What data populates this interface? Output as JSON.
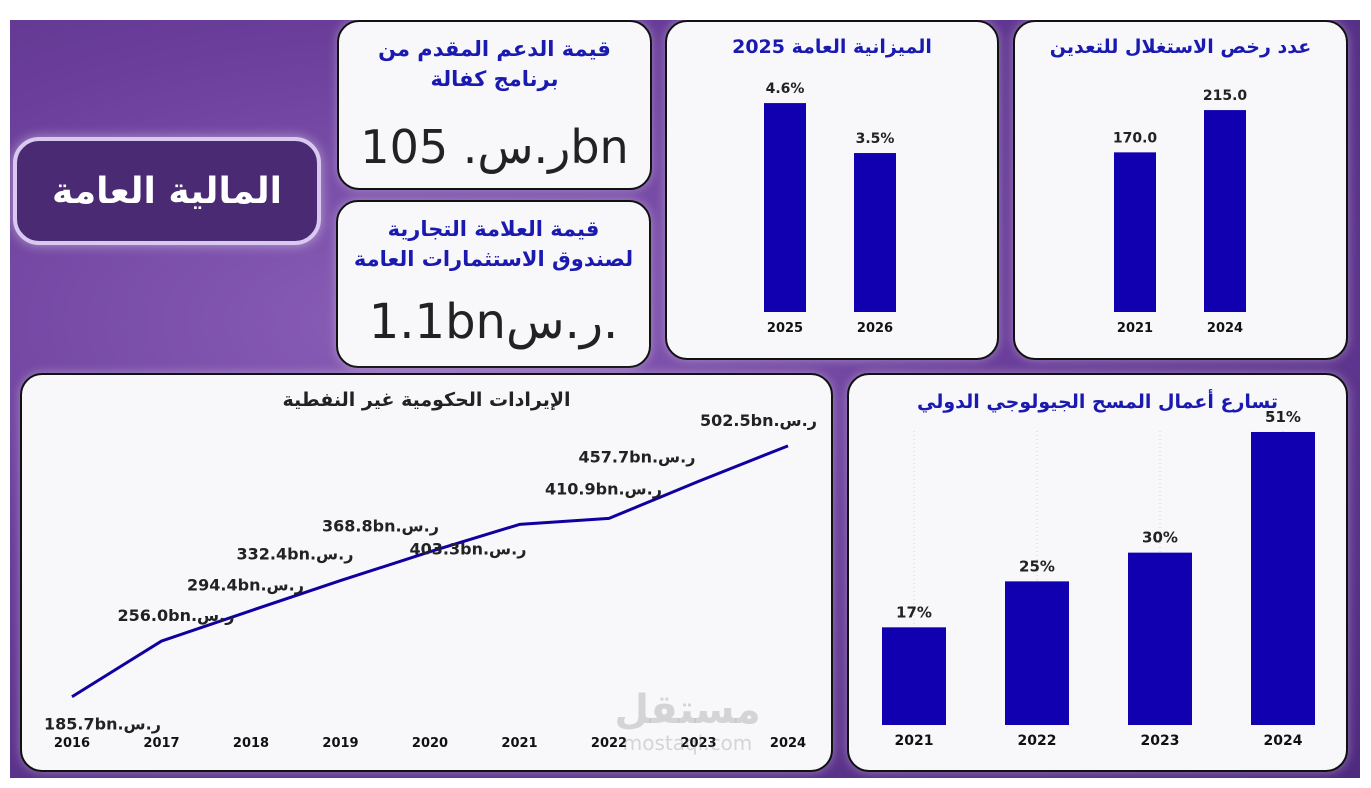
{
  "dashboard": {
    "title": "المالية العامة",
    "watermark_ar": "مستقل",
    "watermark_en": "mostaql.com"
  },
  "colors": {
    "bar": "#1100b0",
    "line": "#1100a0",
    "title": "#1a1ab0",
    "frame": "#6a3e9a"
  },
  "kpis": {
    "kafala": {
      "title": "قيمة الدعم المقدم من برنامج كفالة",
      "value": "ر.س. 105bn"
    },
    "brand": {
      "title": "قيمة العلامة التجارية لصندوق الاستثمارات العامة",
      "value": "1.1bnر.س."
    }
  },
  "chart_data": [
    {
      "id": "mining_licenses",
      "type": "bar",
      "title": "عدد رخص الاستغلال للتعدين",
      "categories": [
        "2021",
        "2024"
      ],
      "values": [
        170.0,
        215.0
      ],
      "labels": [
        "170.0",
        "215.0"
      ],
      "ylim": [
        0,
        230
      ]
    },
    {
      "id": "budget_2025",
      "type": "bar",
      "title": "الميزانية العامة 2025",
      "categories": [
        "2025",
        "2026"
      ],
      "values": [
        4.6,
        3.5
      ],
      "labels": [
        "4.6%",
        "3.5%"
      ],
      "ylim": [
        0,
        4.8
      ]
    },
    {
      "id": "non_oil_revenue",
      "type": "line",
      "title": "الإيرادات الحكومية غير النفطية",
      "categories": [
        "2016",
        "2017",
        "2018",
        "2019",
        "2020",
        "2021",
        "2022",
        "2023",
        "2024"
      ],
      "values": [
        185.7,
        256.0,
        294.4,
        332.4,
        368.8,
        403.3,
        410.9,
        457.7,
        502.5
      ],
      "labels": [
        "185.7bn.ر.س",
        "256.0bn.ر.س",
        "294.4bn.ر.س",
        "332.4bn.ر.س",
        "368.8bn.ر.س",
        "403.3bn.ر.س",
        "410.9bn.ر.س",
        "457.7bn.ر.س",
        "502.5bn.ر.س"
      ],
      "ylim": [
        150,
        520
      ]
    },
    {
      "id": "geological_survey",
      "type": "bar",
      "title": "تسارع أعمال المسح الجيولوجي الدولي",
      "categories": [
        "2021",
        "2022",
        "2023",
        "2024"
      ],
      "values": [
        17,
        25,
        30,
        51
      ],
      "labels": [
        "17%",
        "25%",
        "30%",
        "51%"
      ],
      "ylim": [
        0,
        55
      ]
    }
  ]
}
